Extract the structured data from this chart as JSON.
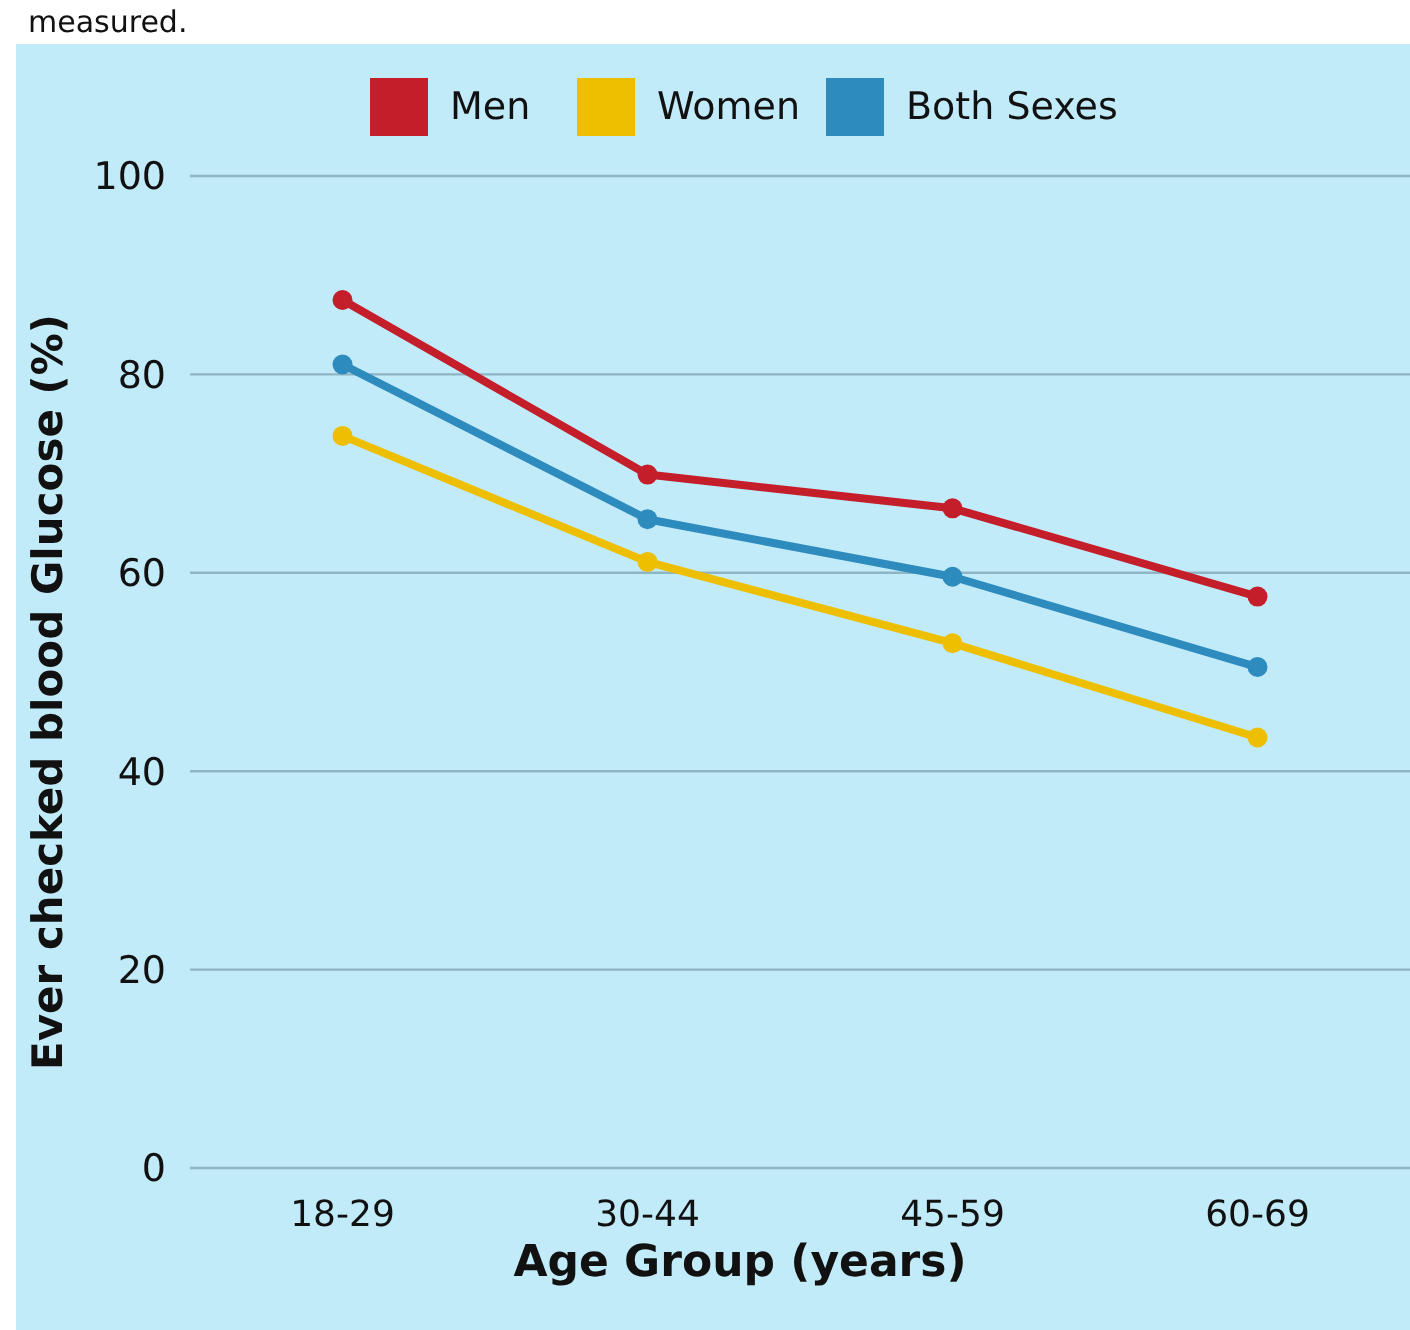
{
  "chart_data": {
    "type": "line",
    "annotations": [
      "measured."
    ],
    "xlabel": "Age Group (years)",
    "ylabel": "Ever checked blood Glucose (%)",
    "categories": [
      "18-29",
      "30-44",
      "45-59",
      "60-69"
    ],
    "series": [
      {
        "name": "Men",
        "color": "#c41e2a",
        "values": [
          87.5,
          69.9,
          66.5,
          57.6
        ]
      },
      {
        "name": "Women",
        "color": "#eebf00",
        "values": [
          73.8,
          61.1,
          52.9,
          43.4
        ]
      },
      {
        "name": "Both Sexes",
        "color": "#2e8bbd",
        "values": [
          81.0,
          65.4,
          59.6,
          50.5
        ]
      }
    ],
    "ylim": [
      0,
      100
    ],
    "yticks": [
      0,
      20,
      40,
      60,
      80,
      100
    ],
    "grid": "y",
    "legend": "top",
    "marker": "circle",
    "line_style": "solid"
  }
}
